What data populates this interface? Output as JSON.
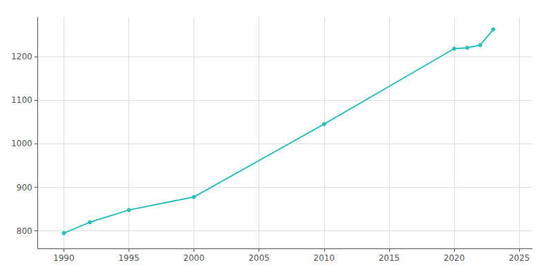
{
  "chart_data": {
    "type": "line",
    "x": [
      1990,
      1992,
      1995,
      2000,
      2010,
      2020,
      2021,
      2022,
      2023
    ],
    "values": [
      795,
      820,
      848,
      878,
      1045,
      1218,
      1220,
      1226,
      1262
    ],
    "color": "#2bbfbf",
    "marker": "circle",
    "xlim": [
      1988,
      2026
    ],
    "ylim": [
      760,
      1290
    ],
    "xticks": [
      1990,
      1995,
      2000,
      2005,
      2010,
      2015,
      2020,
      2025
    ],
    "yticks": [
      800,
      900,
      1000,
      1100,
      1200
    ],
    "grid": true
  }
}
